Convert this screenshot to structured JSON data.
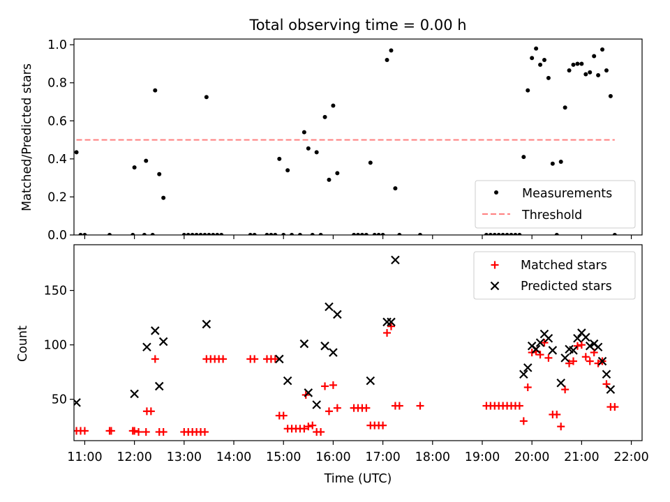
{
  "chart_data": [
    {
      "type": "scatter",
      "title": "Total observing time = 0.00 h",
      "xlabel": "",
      "ylabel": "Matched/Predicted stars",
      "xlim": [
        "10:47",
        "22:13"
      ],
      "ylim": [
        0,
        1.03
      ],
      "yticks": [
        "0.0",
        "0.2",
        "0.4",
        "0.6",
        "0.8",
        "1.0"
      ],
      "legend": {
        "placement": "lower-right",
        "entries": [
          "Measurements",
          "Threshold"
        ]
      },
      "colors": {
        "measurements": "#000000",
        "threshold": "#ff7f7f"
      },
      "threshold": {
        "name": "Threshold",
        "y": 0.5,
        "x_start": "10:50",
        "x_end": "21:40"
      },
      "series": [
        {
          "name": "Measurements",
          "points": [
            [
              "10:50",
              0.435
            ],
            [
              "10:55",
              0.0
            ],
            [
              "11:00",
              0.0
            ],
            [
              "11:30",
              0.0
            ],
            [
              "11:58",
              0.0
            ],
            [
              "12:00",
              0.355
            ],
            [
              "12:12",
              0.0
            ],
            [
              "12:14",
              0.39
            ],
            [
              "12:22",
              0.0
            ],
            [
              "12:25",
              0.76
            ],
            [
              "12:30",
              0.32
            ],
            [
              "12:35",
              0.195
            ],
            [
              "13:00",
              0.0
            ],
            [
              "13:05",
              0.0
            ],
            [
              "13:10",
              0.0
            ],
            [
              "13:15",
              0.0
            ],
            [
              "13:20",
              0.0
            ],
            [
              "13:25",
              0.0
            ],
            [
              "13:27",
              0.725
            ],
            [
              "13:30",
              0.0
            ],
            [
              "13:35",
              0.0
            ],
            [
              "13:40",
              0.0
            ],
            [
              "13:45",
              0.0
            ],
            [
              "14:20",
              0.0
            ],
            [
              "14:25",
              0.0
            ],
            [
              "14:40",
              0.0
            ],
            [
              "14:45",
              0.0
            ],
            [
              "14:50",
              0.0
            ],
            [
              "14:55",
              0.4
            ],
            [
              "15:00",
              0.0
            ],
            [
              "15:05",
              0.34
            ],
            [
              "15:10",
              0.0
            ],
            [
              "15:20",
              0.0
            ],
            [
              "15:25",
              0.54
            ],
            [
              "15:30",
              0.455
            ],
            [
              "15:35",
              0.0
            ],
            [
              "15:40",
              0.435
            ],
            [
              "15:45",
              0.0
            ],
            [
              "15:50",
              0.62
            ],
            [
              "15:55",
              0.29
            ],
            [
              "16:00",
              0.68
            ],
            [
              "16:05",
              0.325
            ],
            [
              "16:25",
              0.0
            ],
            [
              "16:30",
              0.0
            ],
            [
              "16:35",
              0.0
            ],
            [
              "16:40",
              0.0
            ],
            [
              "16:45",
              0.38
            ],
            [
              "16:50",
              0.0
            ],
            [
              "16:55",
              0.0
            ],
            [
              "17:00",
              0.0
            ],
            [
              "17:05",
              0.92
            ],
            [
              "17:10",
              0.97
            ],
            [
              "17:15",
              0.245
            ],
            [
              "17:20",
              0.0
            ],
            [
              "17:45",
              0.0
            ],
            [
              "19:05",
              0.0
            ],
            [
              "19:10",
              0.0
            ],
            [
              "19:15",
              0.0
            ],
            [
              "19:20",
              0.0
            ],
            [
              "19:25",
              0.0
            ],
            [
              "19:30",
              0.0
            ],
            [
              "19:35",
              0.0
            ],
            [
              "19:40",
              0.0
            ],
            [
              "19:45",
              0.0
            ],
            [
              "19:50",
              0.41
            ],
            [
              "19:55",
              0.76
            ],
            [
              "20:00",
              0.93
            ],
            [
              "20:05",
              0.98
            ],
            [
              "20:10",
              0.895
            ],
            [
              "20:15",
              0.92
            ],
            [
              "20:20",
              0.825
            ],
            [
              "20:25",
              0.375
            ],
            [
              "20:30",
              0.0
            ],
            [
              "20:35",
              0.385
            ],
            [
              "20:40",
              0.67
            ],
            [
              "20:45",
              0.865
            ],
            [
              "20:50",
              0.895
            ],
            [
              "20:55",
              0.9
            ],
            [
              "21:00",
              0.9
            ],
            [
              "21:05",
              0.845
            ],
            [
              "21:10",
              0.855
            ],
            [
              "21:15",
              0.94
            ],
            [
              "21:20",
              0.84
            ],
            [
              "21:25",
              0.975
            ],
            [
              "21:30",
              0.865
            ],
            [
              "21:35",
              0.73
            ],
            [
              "21:40",
              0.0
            ]
          ]
        }
      ]
    },
    {
      "type": "scatter",
      "title": "",
      "xlabel": "Time (UTC)",
      "ylabel": "Count",
      "xlim": [
        "10:47",
        "22:13"
      ],
      "ylim": [
        12,
        192
      ],
      "yticks": [
        "50",
        "100",
        "150"
      ],
      "xticks": [
        "11:00",
        "12:00",
        "13:00",
        "14:00",
        "15:00",
        "16:00",
        "17:00",
        "18:00",
        "19:00",
        "20:00",
        "21:00",
        "22:00"
      ],
      "legend": {
        "placement": "upper-right",
        "entries": [
          "Matched stars",
          "Predicted stars"
        ]
      },
      "colors": {
        "matched": "#ff0000",
        "predicted": "#000000"
      },
      "series": [
        {
          "name": "Matched stars",
          "marker": "plus",
          "points": [
            [
              "10:50",
              21
            ],
            [
              "10:55",
              21
            ],
            [
              "11:00",
              21
            ],
            [
              "11:30",
              21
            ],
            [
              "11:32",
              21
            ],
            [
              "11:58",
              21
            ],
            [
              "12:00",
              21
            ],
            [
              "12:05",
              20
            ],
            [
              "12:14",
              20
            ],
            [
              "12:15",
              39
            ],
            [
              "12:20",
              39
            ],
            [
              "12:25",
              87
            ],
            [
              "12:30",
              20
            ],
            [
              "12:35",
              20
            ],
            [
              "13:00",
              20
            ],
            [
              "13:05",
              20
            ],
            [
              "13:10",
              20
            ],
            [
              "13:15",
              20
            ],
            [
              "13:20",
              20
            ],
            [
              "13:25",
              20
            ],
            [
              "13:27",
              87
            ],
            [
              "13:32",
              87
            ],
            [
              "13:37",
              87
            ],
            [
              "13:42",
              87
            ],
            [
              "13:47",
              87
            ],
            [
              "14:20",
              87
            ],
            [
              "14:25",
              87
            ],
            [
              "14:40",
              87
            ],
            [
              "14:45",
              87
            ],
            [
              "14:50",
              87
            ],
            [
              "14:55",
              35
            ],
            [
              "15:00",
              35
            ],
            [
              "15:05",
              23
            ],
            [
              "15:10",
              23
            ],
            [
              "15:15",
              23
            ],
            [
              "15:20",
              23
            ],
            [
              "15:25",
              23
            ],
            [
              "15:27",
              54
            ],
            [
              "15:30",
              25
            ],
            [
              "15:35",
              26
            ],
            [
              "15:40",
              20
            ],
            [
              "15:45",
              20
            ],
            [
              "15:50",
              62
            ],
            [
              "15:55",
              39
            ],
            [
              "16:00",
              63
            ],
            [
              "16:05",
              42
            ],
            [
              "16:25",
              42
            ],
            [
              "16:30",
              42
            ],
            [
              "16:35",
              42
            ],
            [
              "16:40",
              42
            ],
            [
              "16:45",
              26
            ],
            [
              "16:50",
              26
            ],
            [
              "16:55",
              26
            ],
            [
              "17:00",
              26
            ],
            [
              "17:05",
              111
            ],
            [
              "17:10",
              117
            ],
            [
              "17:15",
              44
            ],
            [
              "17:20",
              44
            ],
            [
              "17:45",
              44
            ],
            [
              "19:05",
              44
            ],
            [
              "19:10",
              44
            ],
            [
              "19:15",
              44
            ],
            [
              "19:20",
              44
            ],
            [
              "19:25",
              44
            ],
            [
              "19:30",
              44
            ],
            [
              "19:35",
              44
            ],
            [
              "19:40",
              44
            ],
            [
              "19:45",
              44
            ],
            [
              "19:50",
              30
            ],
            [
              "19:55",
              61
            ],
            [
              "20:00",
              93
            ],
            [
              "20:05",
              94
            ],
            [
              "20:10",
              91
            ],
            [
              "20:15",
              102
            ],
            [
              "20:20",
              88
            ],
            [
              "20:25",
              36
            ],
            [
              "20:30",
              36
            ],
            [
              "20:35",
              25
            ],
            [
              "20:40",
              59
            ],
            [
              "20:45",
              83
            ],
            [
              "20:50",
              85
            ],
            [
              "20:55",
              99
            ],
            [
              "21:00",
              100
            ],
            [
              "21:05",
              89
            ],
            [
              "21:10",
              85
            ],
            [
              "21:15",
              93
            ],
            [
              "21:20",
              83
            ],
            [
              "21:25",
              85
            ],
            [
              "21:30",
              64
            ],
            [
              "21:35",
              43
            ],
            [
              "21:40",
              43
            ]
          ]
        },
        {
          "name": "Predicted stars",
          "marker": "x",
          "points": [
            [
              "10:50",
              47
            ],
            [
              "12:00",
              55
            ],
            [
              "12:15",
              98
            ],
            [
              "12:25",
              113
            ],
            [
              "12:30",
              62
            ],
            [
              "12:35",
              103
            ],
            [
              "13:27",
              119
            ],
            [
              "14:55",
              87
            ],
            [
              "15:05",
              67
            ],
            [
              "15:25",
              101
            ],
            [
              "15:30",
              56
            ],
            [
              "15:40",
              45
            ],
            [
              "15:50",
              99
            ],
            [
              "15:55",
              135
            ],
            [
              "16:00",
              93
            ],
            [
              "16:05",
              128
            ],
            [
              "16:45",
              67
            ],
            [
              "17:05",
              121
            ],
            [
              "17:10",
              121
            ],
            [
              "17:15",
              178
            ],
            [
              "19:50",
              73
            ],
            [
              "19:55",
              79
            ],
            [
              "20:00",
              99
            ],
            [
              "20:05",
              96
            ],
            [
              "20:10",
              102
            ],
            [
              "20:15",
              110
            ],
            [
              "20:20",
              106
            ],
            [
              "20:25",
              95
            ],
            [
              "20:35",
              65
            ],
            [
              "20:40",
              88
            ],
            [
              "20:45",
              96
            ],
            [
              "20:50",
              95
            ],
            [
              "20:55",
              106
            ],
            [
              "21:00",
              111
            ],
            [
              "21:05",
              107
            ],
            [
              "21:10",
              99
            ],
            [
              "21:15",
              101
            ],
            [
              "21:20",
              98
            ],
            [
              "21:25",
              85
            ],
            [
              "21:30",
              73
            ],
            [
              "21:35",
              59
            ]
          ]
        }
      ]
    }
  ]
}
